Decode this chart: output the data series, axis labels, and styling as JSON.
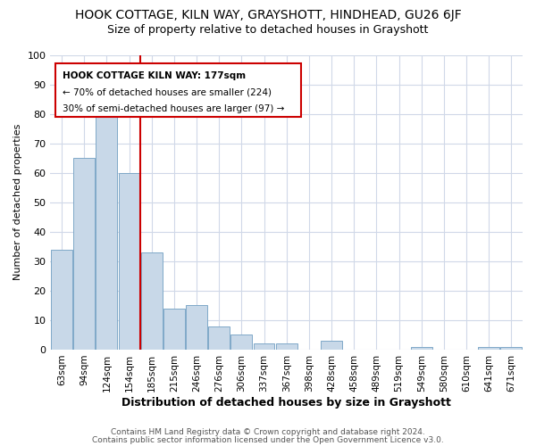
{
  "title": "HOOK COTTAGE, KILN WAY, GRAYSHOTT, HINDHEAD, GU26 6JF",
  "subtitle": "Size of property relative to detached houses in Grayshott",
  "xlabel": "Distribution of detached houses by size in Grayshott",
  "ylabel": "Number of detached properties",
  "footer_line1": "Contains HM Land Registry data © Crown copyright and database right 2024.",
  "footer_line2": "Contains public sector information licensed under the Open Government Licence v3.0.",
  "bar_labels": [
    "63sqm",
    "94sqm",
    "124sqm",
    "154sqm",
    "185sqm",
    "215sqm",
    "246sqm",
    "276sqm",
    "306sqm",
    "337sqm",
    "367sqm",
    "398sqm",
    "428sqm",
    "458sqm",
    "489sqm",
    "519sqm",
    "549sqm",
    "580sqm",
    "610sqm",
    "641sqm",
    "671sqm"
  ],
  "bar_values": [
    34,
    65,
    80,
    60,
    33,
    14,
    15,
    8,
    5,
    2,
    2,
    0,
    3,
    0,
    0,
    0,
    1,
    0,
    0,
    1,
    1
  ],
  "bar_color": "#c8d8e8",
  "bar_edge_color": "#7fa8c8",
  "annotation_title": "HOOK COTTAGE KILN WAY: 177sqm",
  "annotation_line2": "← 70% of detached houses are smaller (224)",
  "annotation_line3": "30% of semi-detached houses are larger (97) →",
  "annotation_box_color": "#ffffff",
  "annotation_box_edge": "#cc0000",
  "reference_line_color": "#cc0000",
  "ylim": [
    0,
    100
  ],
  "yticks": [
    0,
    10,
    20,
    30,
    40,
    50,
    60,
    70,
    80,
    90,
    100
  ],
  "background_color": "#ffffff",
  "grid_color": "#d0d8e8",
  "title_fontsize": 10,
  "subtitle_fontsize": 9
}
